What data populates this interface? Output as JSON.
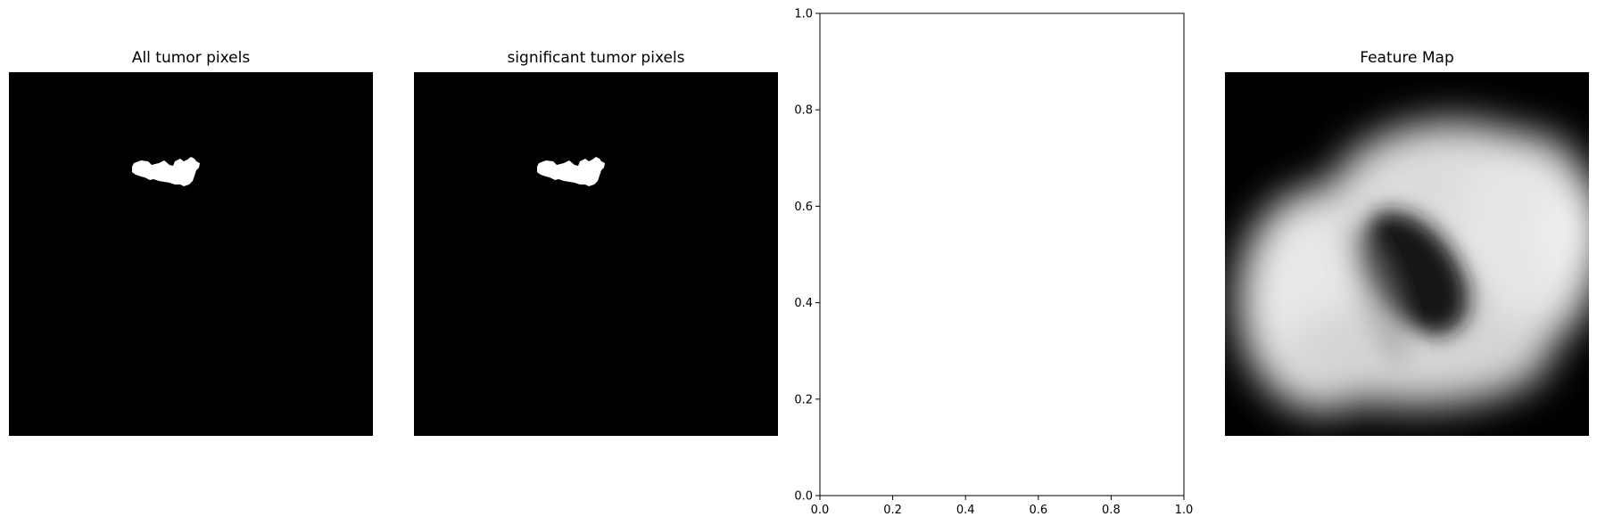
{
  "figure": {
    "panels": [
      {
        "title": "All tumor pixels"
      },
      {
        "title": "significant tumor pixels"
      },
      {
        "title": ""
      },
      {
        "title": "Feature Map"
      }
    ]
  },
  "chart_data": [
    {
      "type": "heatmap",
      "title": "All tumor pixels",
      "colormap": "gray",
      "axes": "off",
      "content": "binary tumor mask, small white blob on black background"
    },
    {
      "type": "heatmap",
      "title": "significant tumor pixels",
      "colormap": "gray",
      "axes": "off",
      "content": "binary tumor mask, small white blob on black background"
    },
    {
      "type": "scatter",
      "title": "",
      "xlabel": "",
      "ylabel": "",
      "xlim": [
        0.0,
        1.0
      ],
      "ylim": [
        0.0,
        1.0
      ],
      "xticks": [
        "0.0",
        "0.2",
        "0.4",
        "0.6",
        "0.8",
        "1.0"
      ],
      "yticks": [
        "0.0",
        "0.2",
        "0.4",
        "0.6",
        "0.8",
        "1.0"
      ],
      "grid": false,
      "series": []
    },
    {
      "type": "heatmap",
      "title": "Feature Map",
      "colormap": "gray",
      "axes": "off",
      "content": "blurred grayscale feature map, bright ring with dark oval center"
    }
  ]
}
